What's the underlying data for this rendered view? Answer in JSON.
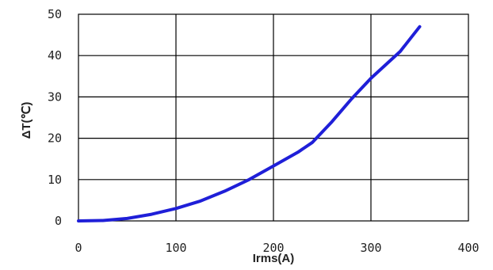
{
  "chart_data": {
    "type": "line",
    "title": "",
    "xlabel": "Irms(A)",
    "ylabel": "ΔT(℃)",
    "xlim": [
      0,
      400
    ],
    "ylim": [
      0,
      50
    ],
    "x_ticks": [
      "0",
      "100",
      "200",
      "300",
      "400"
    ],
    "y_ticks": [
      "0",
      "10",
      "20",
      "30",
      "40",
      "50"
    ],
    "grid": true,
    "legend": "none",
    "series": [
      {
        "color": "#1f1fd8",
        "x": [
          0,
          25,
          50,
          75,
          100,
          125,
          150,
          175,
          200,
          225,
          240,
          260,
          280,
          300,
          330,
          350
        ],
        "y": [
          0,
          0.1,
          0.6,
          1.6,
          3.0,
          4.8,
          7.2,
          10.0,
          13.3,
          16.6,
          19.0,
          24.0,
          29.5,
          34.5,
          41.0,
          47.0
        ]
      }
    ]
  }
}
